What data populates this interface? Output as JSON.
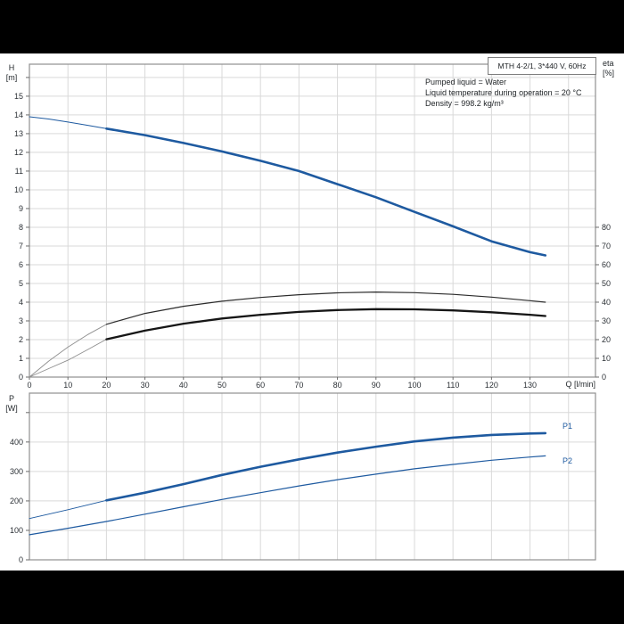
{
  "page": {
    "frame_color": "#000000",
    "panel_color": "#ffffff"
  },
  "header_box": {
    "title": "MTH 4-2/1, 3*440 V, 60Hz"
  },
  "conditions": {
    "line1": "Pumped liquid = Water",
    "line2": "Liquid temperature during operation = 20 °C",
    "line3": "Density = 998.2 kg/m³"
  },
  "labels": {
    "h_axis": "H\n[m]",
    "eta_axis": "eta\n[%]",
    "p_axis": "P\n[W]",
    "q_axis": "Q [l/min]",
    "p1": "P1",
    "p2": "P2"
  },
  "colors": {
    "curve_blue": "#1e5aa0",
    "curve_black": "#161616",
    "curve_dark": "#2b2b2b",
    "lead_gray": "#8f8f8f",
    "grid": "#d9d9d9",
    "border": "#8f8f8f",
    "tick": "#6b6b6b",
    "text": "#2c3136"
  },
  "chart_data": [
    {
      "type": "line",
      "title": "MTH 4-2/1, 3*440 V, 60Hz",
      "xlabel": "Q [l/min]",
      "ylabel": "H [m]",
      "y2label": "eta [%]",
      "grid": true,
      "x": {
        "min": 0,
        "max": 147,
        "step": 10,
        "label_max": 130,
        "tick_max": 130,
        "grid_max": 140
      },
      "y": {
        "min": 0,
        "max": 16.71,
        "step": 1,
        "label_max": 15,
        "tick_max": 16,
        "grid_max": 16
      },
      "y2": {
        "min": 0,
        "max": 167.1,
        "step": 10,
        "label_max": 80,
        "tick_max": 80,
        "grid_max": 0
      },
      "series": [
        {
          "name": "head-curve",
          "axis": "y",
          "style": "main",
          "lead_points": [
            [
              0,
              13.9
            ],
            [
              5,
              13.78
            ],
            [
              10,
              13.62
            ],
            [
              15,
              13.45
            ],
            [
              20,
              13.27
            ]
          ],
          "points": [
            [
              20,
              13.27
            ],
            [
              30,
              12.92
            ],
            [
              40,
              12.5
            ],
            [
              50,
              12.05
            ],
            [
              60,
              11.55
            ],
            [
              70,
              11.0
            ],
            [
              80,
              10.3
            ],
            [
              90,
              9.6
            ],
            [
              100,
              8.82
            ],
            [
              110,
              8.05
            ],
            [
              120,
              7.25
            ],
            [
              130,
              6.67
            ],
            [
              134,
              6.5
            ]
          ],
          "color_key": "curve_blue",
          "width": 2.6,
          "lead_color_key": "curve_blue",
          "lead_width": 1.0
        },
        {
          "name": "eta-pump-curve",
          "axis": "y2",
          "style": "thin",
          "lead_points": [
            [
              0,
              0
            ],
            [
              5,
              8.5
            ],
            [
              10,
              16
            ],
            [
              15,
              22.5
            ],
            [
              20,
              28.2
            ]
          ],
          "points": [
            [
              20,
              28.2
            ],
            [
              30,
              34
            ],
            [
              40,
              37.8
            ],
            [
              50,
              40.5
            ],
            [
              60,
              42.5
            ],
            [
              70,
              44
            ],
            [
              80,
              45
            ],
            [
              90,
              45.4
            ],
            [
              100,
              45.1
            ],
            [
              110,
              44.2
            ],
            [
              120,
              42.7
            ],
            [
              130,
              40.8
            ],
            [
              134,
              40
            ]
          ],
          "color_key": "curve_dark",
          "width": 1.2,
          "lead_color_key": "lead_gray",
          "lead_width": 0.9
        },
        {
          "name": "eta-total-curve",
          "axis": "y2",
          "style": "main",
          "lead_points": [
            [
              0,
              0
            ],
            [
              5,
              4.5
            ],
            [
              10,
              9
            ],
            [
              15,
              14.5
            ],
            [
              20,
              20.2
            ]
          ],
          "points": [
            [
              20,
              20.2
            ],
            [
              30,
              24.8
            ],
            [
              40,
              28.5
            ],
            [
              50,
              31.3
            ],
            [
              60,
              33.3
            ],
            [
              70,
              34.8
            ],
            [
              80,
              35.8
            ],
            [
              90,
              36.3
            ],
            [
              100,
              36.2
            ],
            [
              110,
              35.6
            ],
            [
              120,
              34.6
            ],
            [
              130,
              33.3
            ],
            [
              134,
              32.6
            ]
          ],
          "color_key": "curve_black",
          "width": 2.3,
          "lead_color_key": "lead_gray",
          "lead_width": 0.9
        }
      ]
    },
    {
      "type": "line",
      "title": "",
      "xlabel": "",
      "ylabel": "P [W]",
      "grid": true,
      "x": {
        "min": 0,
        "max": 147,
        "step": 10,
        "label_max": -1,
        "tick_max": -1,
        "grid_max": 140
      },
      "y": {
        "min": 0,
        "max": 566,
        "step": 100,
        "label_max": 400,
        "tick_max": 500,
        "grid_max": 500
      },
      "series": [
        {
          "name": "p1-curve",
          "axis": "y",
          "style": "main",
          "lead_points": [
            [
              0,
              140
            ],
            [
              10,
              170
            ],
            [
              20,
              202
            ]
          ],
          "points": [
            [
              20,
              202
            ],
            [
              30,
              228
            ],
            [
              40,
              257
            ],
            [
              50,
              288
            ],
            [
              60,
              316
            ],
            [
              70,
              341
            ],
            [
              80,
              364
            ],
            [
              90,
              384
            ],
            [
              100,
              402
            ],
            [
              110,
              415
            ],
            [
              120,
              424
            ],
            [
              130,
              429
            ],
            [
              134,
              430
            ]
          ],
          "color_key": "curve_blue",
          "width": 2.6,
          "lead_color_key": "curve_blue",
          "lead_width": 1.0
        },
        {
          "name": "p2-curve",
          "axis": "y",
          "style": "thin",
          "points": [
            [
              0,
              85
            ],
            [
              10,
              107
            ],
            [
              20,
              130
            ],
            [
              30,
              155
            ],
            [
              40,
              180
            ],
            [
              50,
              205
            ],
            [
              60,
              228
            ],
            [
              70,
              251
            ],
            [
              80,
              272
            ],
            [
              90,
              291
            ],
            [
              100,
              309
            ],
            [
              110,
              324
            ],
            [
              120,
              338
            ],
            [
              130,
              349
            ],
            [
              134,
              353
            ]
          ],
          "color_key": "curve_blue",
          "width": 1.2
        }
      ]
    }
  ]
}
